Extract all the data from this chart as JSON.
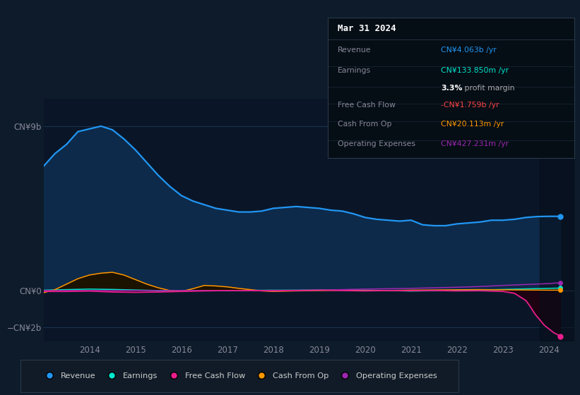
{
  "bg_color": "#0d1b2a",
  "plot_bg_color": "#0a1628",
  "grid_color": "#1e3a5f",
  "title_date": "Mar 31 2024",
  "ylim": [
    -2800000000.0,
    10500000000.0
  ],
  "xlim_start": 2013.0,
  "xlim_end": 2024.55,
  "xticks": [
    2014,
    2015,
    2016,
    2017,
    2018,
    2019,
    2020,
    2021,
    2022,
    2023,
    2024
  ],
  "revenue_color": "#2196f3",
  "earnings_color": "#00e5cc",
  "fcf_color": "#e91e8c",
  "cashop_color": "#ff9800",
  "opex_color": "#9c27b0",
  "revenue_fill": "#0d2a4a",
  "cashop_fill_pos": "#1a1200",
  "cashop_fill_neg": "#0a0800",
  "fcf_fill": "#1a0810",
  "legend_bg": "#111b27",
  "legend_border": "#2a3a4a",
  "infobox_bg": "#050d15",
  "infobox_border": "#2a3a4a",
  "revenue_x": [
    2013.0,
    2013.25,
    2013.5,
    2013.75,
    2014.0,
    2014.25,
    2014.5,
    2014.75,
    2015.0,
    2015.25,
    2015.5,
    2015.75,
    2016.0,
    2016.25,
    2016.5,
    2016.75,
    2017.0,
    2017.25,
    2017.5,
    2017.75,
    2018.0,
    2018.25,
    2018.5,
    2018.75,
    2019.0,
    2019.25,
    2019.5,
    2019.75,
    2020.0,
    2020.25,
    2020.5,
    2020.75,
    2021.0,
    2021.25,
    2021.5,
    2021.75,
    2022.0,
    2022.25,
    2022.5,
    2022.75,
    2023.0,
    2023.25,
    2023.5,
    2023.75,
    2024.0,
    2024.25
  ],
  "revenue_y": [
    6800000000.0,
    7500000000.0,
    8000000000.0,
    8700000000.0,
    8850000000.0,
    9000000000.0,
    8800000000.0,
    8300000000.0,
    7700000000.0,
    7000000000.0,
    6300000000.0,
    5700000000.0,
    5200000000.0,
    4900000000.0,
    4700000000.0,
    4500000000.0,
    4400000000.0,
    4300000000.0,
    4300000000.0,
    4350000000.0,
    4500000000.0,
    4550000000.0,
    4600000000.0,
    4550000000.0,
    4500000000.0,
    4400000000.0,
    4350000000.0,
    4200000000.0,
    4000000000.0,
    3900000000.0,
    3850000000.0,
    3800000000.0,
    3850000000.0,
    3600000000.0,
    3550000000.0,
    3550000000.0,
    3650000000.0,
    3700000000.0,
    3750000000.0,
    3850000000.0,
    3850000000.0,
    3900000000.0,
    4000000000.0,
    4050000000.0,
    4063000000.0,
    4063000000.0
  ],
  "earnings_x": [
    2013.0,
    2013.5,
    2014.0,
    2014.5,
    2015.0,
    2015.5,
    2016.0,
    2016.5,
    2017.0,
    2017.5,
    2018.0,
    2018.5,
    2019.0,
    2019.5,
    2020.0,
    2020.5,
    2021.0,
    2021.5,
    2022.0,
    2022.5,
    2023.0,
    2023.5,
    2024.0,
    2024.25
  ],
  "earnings_y": [
    20000000.0,
    50000000.0,
    80000000.0,
    60000000.0,
    30000000.0,
    0.0,
    -20000000.0,
    -10000000.0,
    0.0,
    10000000.0,
    20000000.0,
    20000000.0,
    30000000.0,
    20000000.0,
    10000000.0,
    0.0,
    -30000000.0,
    -10000000.0,
    10000000.0,
    30000000.0,
    60000000.0,
    90000000.0,
    120000000.0,
    133850000.0
  ],
  "cashop_x": [
    2013.0,
    2013.25,
    2013.5,
    2013.75,
    2014.0,
    2014.25,
    2014.5,
    2014.75,
    2015.0,
    2015.25,
    2015.5,
    2015.75,
    2016.0,
    2016.25,
    2016.5,
    2016.75,
    2017.0,
    2017.25,
    2017.5,
    2017.75,
    2018.0,
    2018.5,
    2019.0,
    2019.5,
    2020.0,
    2020.5,
    2021.0,
    2021.5,
    2022.0,
    2022.5,
    2023.0,
    2023.5,
    2024.0,
    2024.25
  ],
  "cashop_y": [
    -120000000.0,
    50000000.0,
    350000000.0,
    650000000.0,
    850000000.0,
    950000000.0,
    1000000000.0,
    850000000.0,
    600000000.0,
    350000000.0,
    150000000.0,
    0.0,
    -50000000.0,
    100000000.0,
    280000000.0,
    250000000.0,
    200000000.0,
    120000000.0,
    50000000.0,
    -20000000.0,
    -50000000.0,
    -20000000.0,
    0.0,
    20000000.0,
    -10000000.0,
    0.0,
    20000000.0,
    30000000.0,
    40000000.0,
    50000000.0,
    40000000.0,
    30000000.0,
    20000000.0,
    20000000.0
  ],
  "fcf_x": [
    2013.0,
    2013.5,
    2014.0,
    2014.5,
    2015.0,
    2015.5,
    2016.0,
    2016.5,
    2017.0,
    2017.5,
    2018.0,
    2018.5,
    2019.0,
    2019.5,
    2020.0,
    2020.5,
    2021.0,
    2021.5,
    2022.0,
    2022.5,
    2023.0,
    2023.25,
    2023.5,
    2023.6,
    2023.7,
    2023.8,
    2023.9,
    2024.0,
    2024.1,
    2024.25
  ],
  "fcf_y": [
    -50000000.0,
    -50000000.0,
    -30000000.0,
    -80000000.0,
    -100000000.0,
    -80000000.0,
    -50000000.0,
    -20000000.0,
    0.0,
    0.0,
    -20000000.0,
    0.0,
    20000000.0,
    0.0,
    -20000000.0,
    0.0,
    -10000000.0,
    0.0,
    -20000000.0,
    -10000000.0,
    -50000000.0,
    -150000000.0,
    -550000000.0,
    -900000000.0,
    -1300000000.0,
    -1600000000.0,
    -1900000000.0,
    -2100000000.0,
    -2300000000.0,
    -2500000000.0
  ],
  "opex_x": [
    2013.0,
    2014.0,
    2015.0,
    2016.0,
    2017.0,
    2018.0,
    2019.0,
    2019.5,
    2020.0,
    2020.5,
    2021.0,
    2021.5,
    2022.0,
    2022.5,
    2023.0,
    2023.5,
    2024.0,
    2024.25
  ],
  "opex_y": [
    0.0,
    0.0,
    0.0,
    0.0,
    0.0,
    0.0,
    20000000.0,
    50000000.0,
    80000000.0,
    100000000.0,
    120000000.0,
    150000000.0,
    180000000.0,
    220000000.0,
    280000000.0,
    330000000.0,
    380000000.0,
    427000000.0
  ],
  "legend_items": [
    {
      "label": "Revenue",
      "color": "#2196f3"
    },
    {
      "label": "Earnings",
      "color": "#00e5cc"
    },
    {
      "label": "Free Cash Flow",
      "color": "#e91e8c"
    },
    {
      "label": "Cash From Op",
      "color": "#ff9800"
    },
    {
      "label": "Operating Expenses",
      "color": "#9c27b0"
    }
  ]
}
